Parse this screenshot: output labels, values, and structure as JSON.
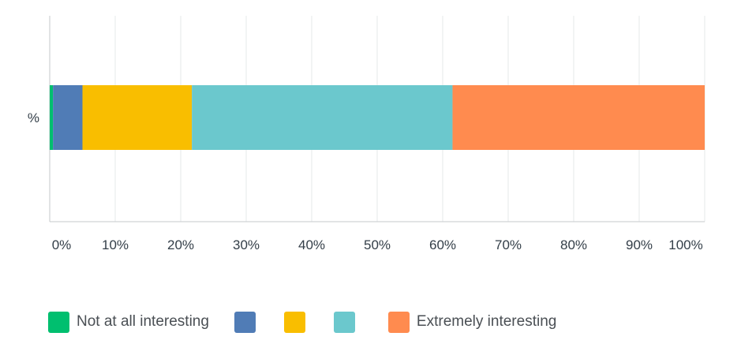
{
  "chart_data": {
    "type": "bar",
    "orientation": "horizontal",
    "stacked": true,
    "categories": [
      "%"
    ],
    "series": [
      {
        "name": "Not at all interesting",
        "values": [
          0.5
        ],
        "color": "#00bf6f"
      },
      {
        "name": "",
        "values": [
          4.5
        ],
        "color": "#507cb6"
      },
      {
        "name": "",
        "values": [
          16.7
        ],
        "color": "#f9be00"
      },
      {
        "name": "",
        "values": [
          39.8
        ],
        "color": "#6bc8cd"
      },
      {
        "name": "Extremely interesting",
        "values": [
          38.5
        ],
        "color": "#ff8b4f"
      }
    ],
    "x_ticks": [
      "0%",
      "10%",
      "20%",
      "30%",
      "40%",
      "50%",
      "60%",
      "70%",
      "80%",
      "90%",
      "100%"
    ],
    "xlim": [
      0,
      100
    ],
    "grid": "vertical",
    "legend_position": "bottom-left"
  }
}
